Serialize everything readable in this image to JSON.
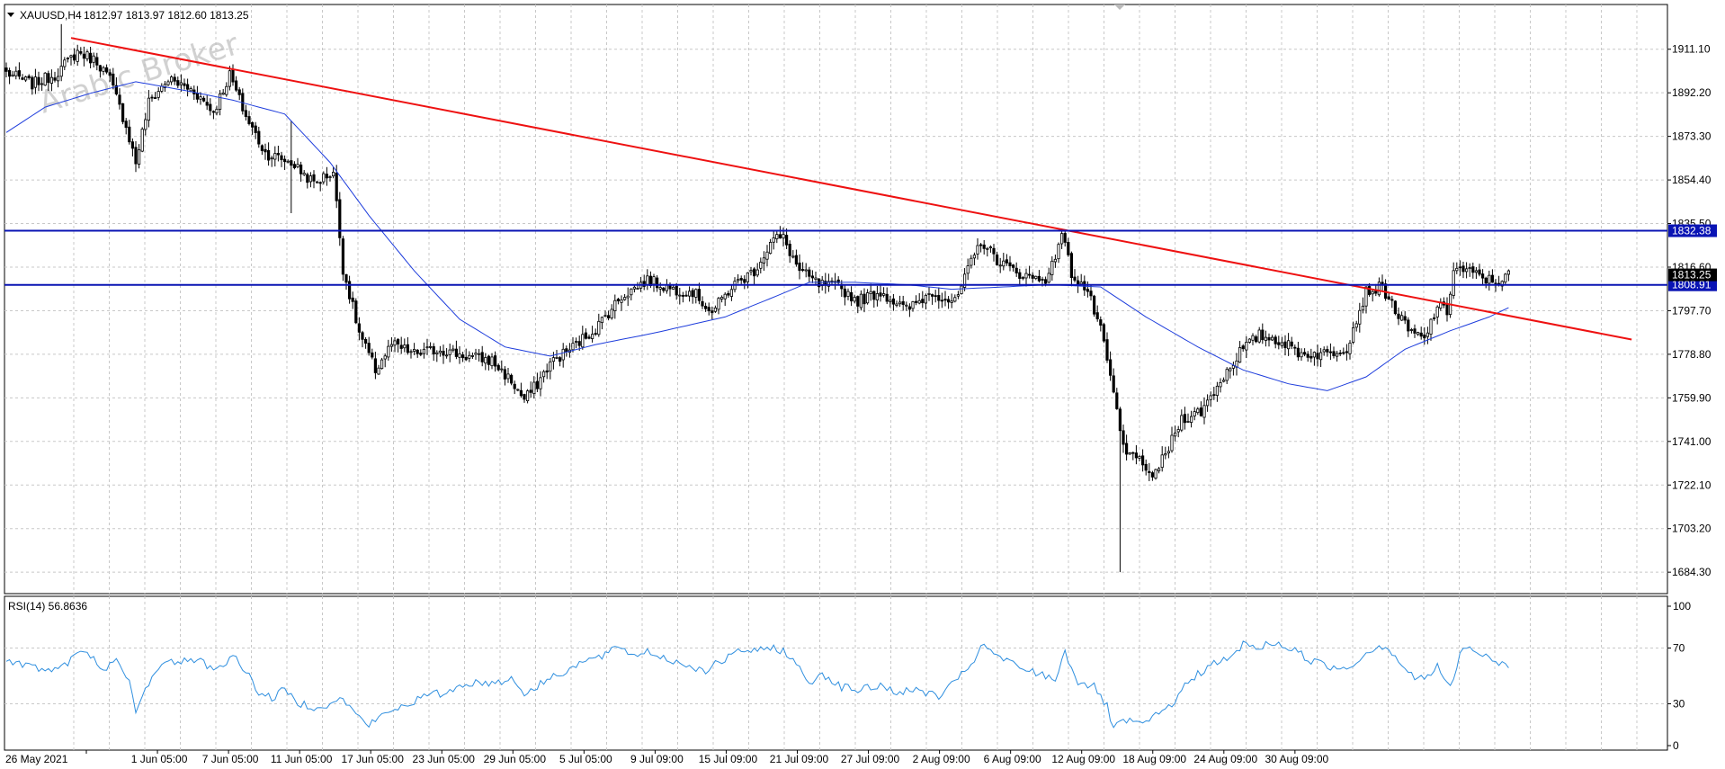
{
  "header": {
    "symbol_label": "XAUUSD,H4",
    "ohlc_text": "1812.97 1813.97 1812.60 1813.25",
    "watermark": "Arabic Broker"
  },
  "colors": {
    "candle": "#000000",
    "ma_line": "#1e3ddc",
    "trendline": "#ee1111",
    "hline": "#0a14b4",
    "rsi_line": "#2f8fdf",
    "grid": "#c8c8c8",
    "price_tag_bg": "#0a14b4",
    "current_tag_bg": "#000000"
  },
  "chart_data": [
    {
      "type": "candlestick",
      "title": "XAUUSD,H4",
      "ylim": [
        1675.0,
        1930.5
      ],
      "y_ticks": [
        1911.1,
        1892.2,
        1873.3,
        1854.4,
        1835.5,
        1816.6,
        1797.7,
        1778.8,
        1759.9,
        1741.0,
        1722.1,
        1703.2,
        1684.3
      ],
      "x_tick_labels": [
        "26 May 2021",
        "1 Jun 05:00",
        "7 Jun 05:00",
        "11 Jun 05:00",
        "17 Jun 05:00",
        "23 Jun 05:00",
        "29 Jun 05:00",
        "5 Jul 05:00",
        "9 Jul 09:00",
        "15 Jul 09:00",
        "21 Jul 09:00",
        "27 Jul 09:00",
        "2 Aug 09:00",
        "6 Aug 09:00",
        "12 Aug 09:00",
        "18 Aug 09:00",
        "24 Aug 09:00",
        "30 Aug 09:00"
      ],
      "close_path_keypoints": [
        [
          0,
          1901
        ],
        [
          8,
          1896
        ],
        [
          15,
          1900
        ],
        [
          22,
          1910
        ],
        [
          28,
          1906
        ],
        [
          32,
          1898
        ],
        [
          37,
          1878
        ],
        [
          40,
          1862
        ],
        [
          44,
          1888
        ],
        [
          50,
          1898
        ],
        [
          58,
          1893
        ],
        [
          64,
          1884
        ],
        [
          69,
          1900
        ],
        [
          74,
          1882
        ],
        [
          80,
          1866
        ],
        [
          88,
          1862
        ],
        [
          95,
          1853
        ],
        [
          101,
          1858
        ],
        [
          104,
          1816
        ],
        [
          109,
          1788
        ],
        [
          114,
          1772
        ],
        [
          119,
          1783
        ],
        [
          126,
          1779
        ],
        [
          134,
          1781
        ],
        [
          142,
          1778
        ],
        [
          150,
          1776
        ],
        [
          156,
          1767
        ],
        [
          160,
          1759
        ],
        [
          164,
          1766
        ],
        [
          168,
          1775
        ],
        [
          175,
          1782
        ],
        [
          182,
          1790
        ],
        [
          190,
          1804
        ],
        [
          198,
          1811
        ],
        [
          206,
          1807
        ],
        [
          212,
          1806
        ],
        [
          218,
          1797
        ],
        [
          224,
          1808
        ],
        [
          231,
          1815
        ],
        [
          237,
          1829
        ],
        [
          240,
          1829
        ],
        [
          245,
          1815
        ],
        [
          251,
          1809
        ],
        [
          257,
          1808
        ],
        [
          263,
          1802
        ],
        [
          270,
          1806
        ],
        [
          278,
          1798
        ],
        [
          286,
          1806
        ],
        [
          293,
          1801
        ],
        [
          297,
          1815
        ],
        [
          301,
          1828
        ],
        [
          306,
          1820
        ],
        [
          311,
          1815
        ],
        [
          317,
          1812
        ],
        [
          322,
          1812
        ],
        [
          326,
          1832
        ],
        [
          329,
          1814
        ],
        [
          334,
          1806
        ],
        [
          338,
          1789
        ],
        [
          342,
          1762
        ],
        [
          344,
          1745
        ],
        [
          346,
          1734
        ],
        [
          348,
          1738
        ],
        [
          352,
          1726
        ],
        [
          355,
          1728
        ],
        [
          358,
          1735
        ],
        [
          363,
          1751
        ],
        [
          369,
          1754
        ],
        [
          374,
          1765
        ],
        [
          381,
          1780
        ],
        [
          387,
          1787
        ],
        [
          393,
          1785
        ],
        [
          400,
          1779
        ],
        [
          408,
          1779
        ],
        [
          414,
          1782
        ],
        [
          420,
          1806
        ],
        [
          425,
          1808
        ],
        [
          429,
          1798
        ],
        [
          433,
          1789
        ],
        [
          438,
          1785
        ],
        [
          442,
          1800
        ],
        [
          445,
          1797
        ],
        [
          447,
          1816
        ],
        [
          451,
          1815
        ],
        [
          456,
          1812
        ],
        [
          460,
          1810
        ],
        [
          464,
          1813
        ]
      ],
      "rng_seed": 7,
      "extremes": [
        {
          "index": 88,
          "high": 1880.0,
          "low": 1840.0
        },
        {
          "index": 344,
          "high": 1748.0,
          "low": 1684.3
        },
        {
          "index": 17,
          "high": 1922.0,
          "low": 1898.0
        }
      ],
      "moving_average": {
        "color": "#1e3ddc",
        "points": [
          [
            0,
            1875
          ],
          [
            12,
            1886
          ],
          [
            26,
            1892
          ],
          [
            40,
            1897
          ],
          [
            56,
            1893
          ],
          [
            70,
            1889
          ],
          [
            86,
            1883
          ],
          [
            100,
            1862
          ],
          [
            112,
            1839
          ],
          [
            126,
            1815
          ],
          [
            140,
            1794
          ],
          [
            154,
            1782
          ],
          [
            168,
            1778
          ],
          [
            182,
            1783
          ],
          [
            200,
            1788
          ],
          [
            222,
            1795
          ],
          [
            236,
            1803
          ],
          [
            248,
            1810
          ],
          [
            262,
            1810
          ],
          [
            278,
            1809
          ],
          [
            292,
            1807
          ],
          [
            308,
            1808
          ],
          [
            322,
            1809
          ],
          [
            338,
            1808
          ],
          [
            352,
            1795
          ],
          [
            368,
            1782
          ],
          [
            382,
            1772
          ],
          [
            396,
            1766
          ],
          [
            408,
            1763
          ],
          [
            420,
            1769
          ],
          [
            432,
            1781
          ],
          [
            446,
            1789
          ],
          [
            458,
            1795
          ],
          [
            464,
            1799
          ]
        ]
      },
      "trendline": {
        "color": "#ee1111",
        "from": [
          20,
          1916
        ],
        "to": [
          502,
          1785.2
        ]
      },
      "horizontal_levels": [
        {
          "price": 1832.38,
          "label": "1832.38",
          "color": "#0a14b4"
        },
        {
          "price": 1808.91,
          "label": "1808.91",
          "color": "#0a14b4"
        }
      ],
      "current_price": {
        "value": 1813.25,
        "label": "1813.25"
      },
      "extra_axis_labels": [
        {
          "price": 1835.5,
          "label": "1835.50"
        },
        {
          "price": 1816.6,
          "label": "1816.60"
        }
      ]
    },
    {
      "type": "line",
      "title": "RSI(14) 56.8636",
      "ylim": [
        0,
        100
      ],
      "y_ticks": [
        100,
        70,
        30,
        0
      ],
      "levels": [
        70,
        30
      ],
      "series": [
        {
          "name": "RSI(14)",
          "color": "#2f8fdf",
          "keypoints": [
            [
              0,
              61
            ],
            [
              6,
              58
            ],
            [
              12,
              54
            ],
            [
              18,
              57
            ],
            [
              22,
              67
            ],
            [
              26,
              64
            ],
            [
              30,
              56
            ],
            [
              34,
              60
            ],
            [
              38,
              45
            ],
            [
              40,
              24
            ],
            [
              43,
              40
            ],
            [
              46,
              55
            ],
            [
              50,
              59
            ],
            [
              56,
              62
            ],
            [
              60,
              60
            ],
            [
              65,
              55
            ],
            [
              70,
              64
            ],
            [
              74,
              54
            ],
            [
              78,
              38
            ],
            [
              82,
              34
            ],
            [
              86,
              40
            ],
            [
              90,
              31
            ],
            [
              95,
              28
            ],
            [
              101,
              30
            ],
            [
              104,
              34
            ],
            [
              108,
              22
            ],
            [
              112,
              15
            ],
            [
              118,
              24
            ],
            [
              124,
              30
            ],
            [
              130,
              36
            ],
            [
              136,
              38
            ],
            [
              142,
              45
            ],
            [
              150,
              45
            ],
            [
              156,
              48
            ],
            [
              160,
              38
            ],
            [
              164,
              42
            ],
            [
              168,
              49
            ],
            [
              172,
              53
            ],
            [
              178,
              60
            ],
            [
              184,
              64
            ],
            [
              190,
              71
            ],
            [
              194,
              64
            ],
            [
              198,
              68
            ],
            [
              204,
              62
            ],
            [
              210,
              58
            ],
            [
              216,
              54
            ],
            [
              222,
              62
            ],
            [
              228,
              69
            ],
            [
              232,
              67
            ],
            [
              236,
              71
            ],
            [
              240,
              68
            ],
            [
              244,
              58
            ],
            [
              248,
              45
            ],
            [
              252,
              52
            ],
            [
              258,
              42
            ],
            [
              264,
              40
            ],
            [
              270,
              43
            ],
            [
              276,
              38
            ],
            [
              282,
              40
            ],
            [
              288,
              35
            ],
            [
              293,
              45
            ],
            [
              298,
              59
            ],
            [
              302,
              72
            ],
            [
              306,
              64
            ],
            [
              312,
              57
            ],
            [
              318,
              52
            ],
            [
              324,
              48
            ],
            [
              327,
              67
            ],
            [
              331,
              46
            ],
            [
              336,
              42
            ],
            [
              340,
              28
            ],
            [
              342,
              12
            ],
            [
              346,
              18
            ],
            [
              350,
              15
            ],
            [
              354,
              19
            ],
            [
              360,
              30
            ],
            [
              366,
              48
            ],
            [
              372,
              58
            ],
            [
              378,
              62
            ],
            [
              382,
              73
            ],
            [
              386,
              70
            ],
            [
              392,
              74
            ],
            [
              398,
              68
            ],
            [
              404,
              60
            ],
            [
              410,
              56
            ],
            [
              414,
              56
            ],
            [
              418,
              62
            ],
            [
              422,
              70
            ],
            [
              426,
              72
            ],
            [
              430,
              61
            ],
            [
              434,
              50
            ],
            [
              438,
              47
            ],
            [
              442,
              57
            ],
            [
              446,
              41
            ],
            [
              450,
              72
            ],
            [
              454,
              67
            ],
            [
              458,
              62
            ],
            [
              464,
              56.86
            ]
          ]
        }
      ]
    }
  ]
}
